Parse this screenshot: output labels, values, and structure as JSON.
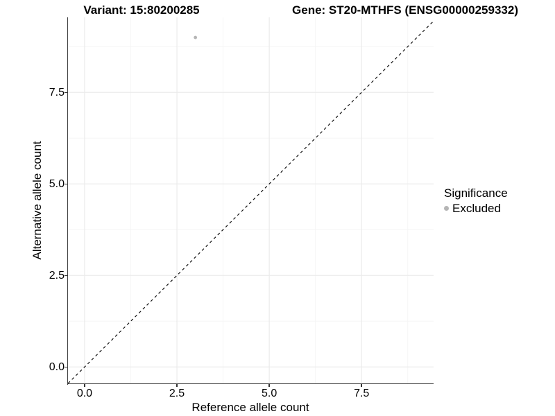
{
  "header": {
    "title_left": "Variant: 15:80200285",
    "title_right": "Gene: ST20-MTHFS (ENSG00000259332)"
  },
  "chart_data": {
    "type": "scatter",
    "xlabel": "Reference allele count",
    "ylabel": "Alternative allele count",
    "xlim": [
      -0.45,
      9.45
    ],
    "ylim": [
      -0.45,
      9.55
    ],
    "xticks": {
      "values": [
        0,
        2.5,
        5,
        7.5
      ],
      "labels": [
        "0.0",
        "2.5",
        "5.0",
        "7.5"
      ]
    },
    "yticks": {
      "values": [
        0,
        2.5,
        5,
        7.5
      ],
      "labels": [
        "0.0",
        "2.5",
        "5.0",
        "7.5"
      ]
    },
    "minor_xticks": [
      1.25,
      3.75,
      6.25,
      8.75
    ],
    "minor_yticks": [
      1.25,
      3.75,
      6.25,
      8.75
    ],
    "grid": "major+minor",
    "series": [
      {
        "name": "Excluded",
        "points": [
          {
            "x": 3,
            "y": 9
          }
        ],
        "color": "#b5b5b5",
        "marker": "circle",
        "marker_radius_px": 2.4
      }
    ],
    "reference_line": {
      "type": "abline",
      "slope": 1,
      "intercept": 0,
      "style": "dashed",
      "color": "#111111"
    },
    "legend": {
      "title": "Significance",
      "position": "right",
      "items": [
        {
          "label": "Excluded",
          "color": "#b5b5b5"
        }
      ]
    },
    "colors": {
      "background": "#ffffff",
      "axis_line": "#3f3f3f",
      "tick_mark": "#333333",
      "grid_major": "#ebebeb",
      "grid_minor": "#f5f5f5",
      "text": "#000000"
    }
  }
}
